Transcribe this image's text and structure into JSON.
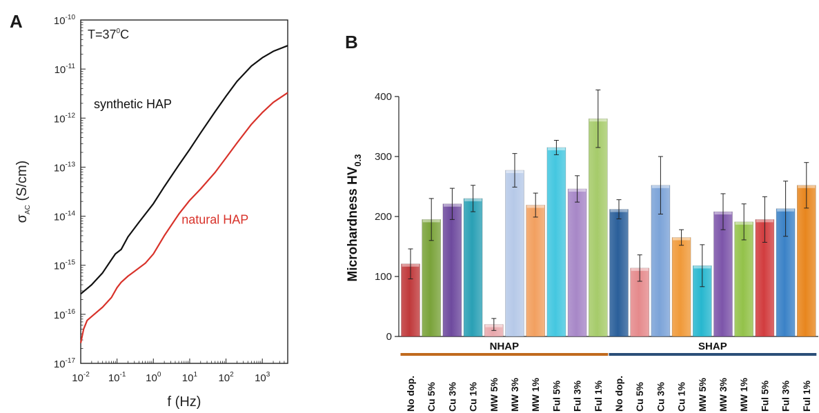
{
  "chart_data": [
    {
      "panel": "A",
      "type": "line",
      "annotation": {
        "text": "T=37",
        "sup": "0",
        "suffix": "C"
      },
      "xlabel": "f (Hz)",
      "ylabel": {
        "main": "σ",
        "sub": "AC",
        "rest": " (S/cm)"
      },
      "x_scale": "log",
      "y_scale": "log",
      "xlim": [
        0.01,
        5000
      ],
      "ylim": [
        1e-17,
        1e-10
      ],
      "x_ticks": [
        {
          "value": 0.01,
          "base": "10",
          "exp": "-2"
        },
        {
          "value": 0.1,
          "base": "10",
          "exp": "-1"
        },
        {
          "value": 1,
          "base": "10",
          "exp": "0"
        },
        {
          "value": 10,
          "base": "10",
          "exp": "1"
        },
        {
          "value": 100,
          "base": "10",
          "exp": "2"
        },
        {
          "value": 1000,
          "base": "10",
          "exp": "3"
        }
      ],
      "y_ticks": [
        {
          "value": 1e-17,
          "base": "10",
          "exp": "-17"
        },
        {
          "value": 1e-16,
          "base": "10",
          "exp": "-16"
        },
        {
          "value": 1e-15,
          "base": "10",
          "exp": "-15"
        },
        {
          "value": 1e-14,
          "base": "10",
          "exp": "-14"
        },
        {
          "value": 1e-13,
          "base": "10",
          "exp": "-13"
        },
        {
          "value": 1e-12,
          "base": "10",
          "exp": "-12"
        },
        {
          "value": 1e-11,
          "base": "10",
          "exp": "-11"
        },
        {
          "value": 1e-10,
          "base": "10",
          "exp": "-10"
        }
      ],
      "grid": false,
      "series": [
        {
          "name": "synthetic HAP",
          "color": "#111111",
          "points": [
            [
              0.01,
              2.6e-16
            ],
            [
              0.02,
              4e-16
            ],
            [
              0.04,
              7e-16
            ],
            [
              0.07,
              1.3e-15
            ],
            [
              0.09,
              1.7e-15
            ],
            [
              0.13,
              2.1e-15
            ],
            [
              0.2,
              3.8e-15
            ],
            [
              0.4,
              7.5e-15
            ],
            [
              1,
              1.8e-14
            ],
            [
              2,
              4e-14
            ],
            [
              5,
              1.1e-13
            ],
            [
              10,
              2.3e-13
            ],
            [
              20,
              5e-13
            ],
            [
              50,
              1.35e-12
            ],
            [
              100,
              2.8e-12
            ],
            [
              200,
              5.6e-12
            ],
            [
              500,
              1.15e-11
            ],
            [
              1000,
              1.7e-11
            ],
            [
              2000,
              2.3e-11
            ],
            [
              5000,
              3e-11
            ]
          ]
        },
        {
          "name": "natural HAP",
          "color": "#d8322a",
          "points": [
            [
              0.01,
              2.6e-17
            ],
            [
              0.012,
              5e-17
            ],
            [
              0.015,
              7.5e-17
            ],
            [
              0.02,
              9e-17
            ],
            [
              0.04,
              1.4e-16
            ],
            [
              0.07,
              2.2e-16
            ],
            [
              0.1,
              3.5e-16
            ],
            [
              0.13,
              4.5e-16
            ],
            [
              0.2,
              6e-16
            ],
            [
              0.3,
              7.5e-16
            ],
            [
              0.6,
              1.1e-15
            ],
            [
              1,
              1.7e-15
            ],
            [
              2,
              4e-15
            ],
            [
              5,
              1.1e-14
            ],
            [
              10,
              2.1e-14
            ],
            [
              20,
              3.6e-14
            ],
            [
              50,
              7.8e-14
            ],
            [
              100,
              1.55e-13
            ],
            [
              200,
              3.1e-13
            ],
            [
              500,
              7.5e-13
            ],
            [
              1000,
              1.3e-12
            ],
            [
              2000,
              2.1e-12
            ],
            [
              5000,
              3.3e-12
            ]
          ]
        }
      ]
    },
    {
      "panel": "B",
      "type": "bar",
      "ylabel": {
        "main": "Microhardness HV",
        "sub": "0.3"
      },
      "ylim": [
        0,
        400
      ],
      "y_ticks": [
        0,
        100,
        200,
        300,
        400
      ],
      "grid": false,
      "groups": [
        {
          "name": "NHAP",
          "color": "#c06a1e",
          "from": 0,
          "to": 9
        },
        {
          "name": "SHAP",
          "color": "#2a4e78",
          "from": 10,
          "to": 19
        }
      ],
      "categories": [
        "No dop.",
        "Cu 5%",
        "Cu 3%",
        "Cu 1%",
        "MW 5%",
        "MW 3%",
        "MW 1%",
        "Ful 5%",
        "Ful 3%",
        "Ful 1%",
        "No dop.",
        "Cu 5%",
        "Cu 3%",
        "Cu 1%",
        "MW 5%",
        "MW 3%",
        "MW 1%",
        "Ful 5%",
        "Ful 3%",
        "Ful 1%"
      ],
      "values": [
        121,
        195,
        221,
        230,
        20,
        277,
        219,
        315,
        246,
        363,
        212,
        114,
        252,
        165,
        118,
        208,
        191,
        195,
        213,
        252
      ],
      "errors": [
        25,
        35,
        26,
        22,
        10,
        28,
        20,
        12,
        22,
        48,
        16,
        22,
        48,
        13,
        35,
        30,
        30,
        38,
        46,
        38
      ],
      "colors": [
        "#c0393b",
        "#7aa33a",
        "#6e4a9e",
        "#2aa0b5",
        "#e8a8ac",
        "#b6c9e8",
        "#f2a060",
        "#44c7e0",
        "#a787c7",
        "#a6cb6a",
        "#2a5f9a",
        "#e58a8c",
        "#7ca3d8",
        "#f09a3a",
        "#27b7cf",
        "#7d55aa",
        "#93c24a",
        "#d23d3f",
        "#3b82c7",
        "#e8861e"
      ]
    }
  ]
}
